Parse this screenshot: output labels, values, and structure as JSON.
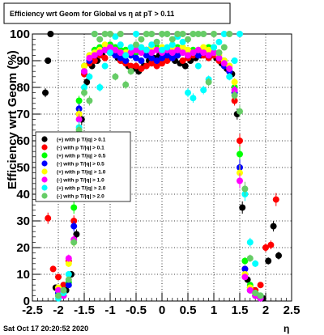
{
  "chart_data": {
    "type": "scatter",
    "title": "Efficiency wrt Geom for Global vs   η at pT > 0.11",
    "xlabel": "η",
    "ylabel": "Efficiency wrt Geom (%)",
    "xlim": [
      -2.5,
      2.5
    ],
    "ylim": [
      0,
      100
    ],
    "x_ticks": [
      -2.5,
      -2,
      -1.5,
      -1,
      -0.5,
      0,
      0.5,
      1,
      1.5,
      2,
      2.5
    ],
    "y_ticks": [
      0,
      10,
      20,
      30,
      40,
      50,
      60,
      70,
      80,
      90,
      100
    ],
    "grid": true,
    "legend_position": "left-middle",
    "timestamp": "Sat Oct 17 20:20:52 2020",
    "series": [
      {
        "name": "(+) with p T/|q| > 0.1",
        "color": "#000000",
        "x": [
          -2.25,
          -2.2,
          -2.15,
          -2.05,
          -1.95,
          -1.85,
          -1.75,
          -1.65,
          -1.55,
          -1.45,
          -1.35,
          -1.25,
          -1.15,
          -1.05,
          -0.95,
          -0.85,
          -0.75,
          -0.65,
          -0.55,
          -0.45,
          -0.35,
          -0.25,
          -0.15,
          -0.05,
          0.05,
          0.15,
          0.25,
          0.35,
          0.45,
          0.55,
          0.65,
          0.75,
          0.85,
          0.95,
          1.05,
          1.15,
          1.25,
          1.35,
          1.45,
          1.55,
          1.65,
          1.75,
          1.85,
          1.95,
          2.05,
          2.15,
          2.25
        ],
        "y": [
          78,
          90,
          100,
          5,
          3,
          4,
          10,
          25,
          68,
          82,
          88,
          90,
          92,
          94,
          93,
          91,
          90,
          88,
          87,
          86,
          88,
          90,
          91,
          92,
          92,
          91,
          90,
          89,
          88,
          90,
          91,
          92,
          93,
          92,
          91,
          89,
          87,
          85,
          70,
          35,
          8,
          4,
          2,
          1,
          15,
          28,
          17
        ]
      },
      {
        "name": "(-) with p T/|q| > 0.1",
        "color": "#ff0000",
        "x": [
          -2.2,
          -2.1,
          -2.0,
          -1.9,
          -1.8,
          -1.7,
          -1.6,
          -1.5,
          -1.4,
          -1.3,
          -1.2,
          -1.1,
          -1.0,
          -0.9,
          -0.8,
          -0.7,
          -0.6,
          -0.5,
          -0.4,
          -0.3,
          -0.2,
          -0.1,
          0.0,
          0.1,
          0.2,
          0.3,
          0.4,
          0.5,
          0.6,
          0.7,
          0.8,
          0.9,
          1.0,
          1.1,
          1.2,
          1.3,
          1.4,
          1.5,
          1.6,
          1.7,
          1.8,
          1.9,
          2.0,
          2.1,
          2.2
        ],
        "y": [
          31,
          12,
          9,
          6,
          15,
          30,
          70,
          85,
          89,
          90,
          92,
          91,
          93,
          92,
          90,
          89,
          88,
          88,
          87,
          88,
          89,
          88,
          89,
          90,
          91,
          92,
          90,
          91,
          92,
          93,
          92,
          91,
          92,
          90,
          88,
          86,
          75,
          60,
          12,
          5,
          4,
          6,
          20,
          21,
          38
        ]
      },
      {
        "name": "(+) with p T/|q| > 0.5",
        "color": "#00ff00",
        "x": [
          -2.0,
          -1.9,
          -1.8,
          -1.7,
          -1.6,
          -1.5,
          -1.4,
          -1.3,
          -1.2,
          -1.1,
          -1.0,
          -0.9,
          -0.8,
          -0.7,
          -0.6,
          -0.5,
          -0.4,
          -0.3,
          -0.2,
          -0.1,
          0.0,
          0.1,
          0.2,
          0.3,
          0.4,
          0.5,
          0.6,
          0.7,
          0.8,
          0.9,
          1.0,
          1.1,
          1.2,
          1.3,
          1.4,
          1.5,
          1.6,
          1.7,
          1.8,
          1.9
        ],
        "y": [
          2,
          4,
          7,
          35,
          75,
          88,
          92,
          94,
          95,
          95,
          96,
          95,
          94,
          94,
          93,
          93,
          94,
          94,
          95,
          95,
          94,
          93,
          94,
          95,
          95,
          94,
          94,
          93,
          94,
          95,
          95,
          93,
          90,
          88,
          80,
          55,
          15,
          6,
          3,
          1
        ]
      },
      {
        "name": "(-) with p T/|q| > 0.5",
        "color": "#0000ff",
        "x": [
          -2.0,
          -1.9,
          -1.8,
          -1.7,
          -1.6,
          -1.5,
          -1.4,
          -1.3,
          -1.2,
          -1.1,
          -1.0,
          -0.9,
          -0.8,
          -0.7,
          -0.6,
          -0.5,
          -0.4,
          -0.3,
          -0.2,
          -0.1,
          0.0,
          0.1,
          0.2,
          0.3,
          0.4,
          0.5,
          0.6,
          0.7,
          0.8,
          0.9,
          1.0,
          1.1,
          1.2,
          1.3,
          1.4,
          1.5,
          1.6,
          1.7,
          1.8,
          1.9
        ],
        "y": [
          3,
          2,
          6,
          28,
          72,
          86,
          90,
          92,
          93,
          94,
          93,
          92,
          91,
          90,
          92,
          91,
          90,
          92,
          91,
          90,
          91,
          92,
          91,
          92,
          93,
          92,
          93,
          92,
          93,
          92,
          93,
          91,
          88,
          86,
          78,
          50,
          12,
          4,
          2,
          1
        ]
      },
      {
        "name": "(+) with p T/|q| > 1.0",
        "color": "#ffff00",
        "x": [
          -2.0,
          -1.9,
          -1.8,
          -1.7,
          -1.6,
          -1.5,
          -1.4,
          -1.3,
          -1.2,
          -1.1,
          -1.0,
          -0.9,
          -0.8,
          -0.7,
          -0.6,
          -0.5,
          -0.4,
          -0.3,
          -0.2,
          -0.1,
          0.0,
          0.1,
          0.2,
          0.3,
          0.4,
          0.5,
          0.6,
          0.7,
          0.8,
          0.9,
          1.0,
          1.1,
          1.2,
          1.3,
          1.4,
          1.5,
          1.6,
          1.7,
          1.8,
          1.9
        ],
        "y": [
          5,
          3,
          14,
          22,
          70,
          88,
          92,
          93,
          94,
          96,
          95,
          94,
          93,
          93,
          94,
          94,
          95,
          94,
          95,
          94,
          95,
          94,
          95,
          94,
          95,
          94,
          93,
          94,
          95,
          94,
          93,
          92,
          90,
          88,
          82,
          48,
          10,
          5,
          3,
          2
        ]
      },
      {
        "name": "(-) with p T/|q| > 1.0",
        "color": "#ff00ff",
        "x": [
          -2.0,
          -1.9,
          -1.8,
          -1.7,
          -1.6,
          -1.5,
          -1.4,
          -1.3,
          -1.2,
          -1.1,
          -1.0,
          -0.9,
          -0.8,
          -0.7,
          -0.6,
          -0.5,
          -0.4,
          -0.3,
          -0.2,
          -0.1,
          0.0,
          0.1,
          0.2,
          0.3,
          0.4,
          0.5,
          0.6,
          0.7,
          0.8,
          0.9,
          1.0,
          1.1,
          1.2,
          1.3,
          1.4,
          1.5,
          1.6,
          1.7,
          1.8,
          1.9
        ],
        "y": [
          4,
          2,
          16,
          23,
          68,
          86,
          91,
          92,
          93,
          94,
          95,
          94,
          93,
          92,
          93,
          94,
          93,
          94,
          93,
          94,
          93,
          94,
          93,
          94,
          93,
          92,
          93,
          94,
          93,
          92,
          93,
          91,
          89,
          87,
          79,
          45,
          9,
          4,
          2,
          1
        ]
      },
      {
        "name": "(+) with p T/|q| > 2.0",
        "color": "#00ffff",
        "x": [
          -2.0,
          -1.9,
          -1.8,
          -1.7,
          -1.6,
          -1.5,
          -1.4,
          -1.3,
          -1.2,
          -1.1,
          -1.0,
          -0.9,
          -0.8,
          -0.7,
          -0.6,
          -0.5,
          -0.4,
          -0.3,
          -0.2,
          -0.1,
          0.0,
          0.1,
          0.2,
          0.3,
          0.4,
          0.5,
          0.6,
          0.7,
          0.8,
          0.9,
          1.0,
          1.1,
          1.2,
          1.3,
          1.4,
          1.5,
          1.6,
          1.7,
          1.8,
          1.9
        ],
        "y": [
          1,
          3,
          10,
          45,
          65,
          80,
          84,
          100,
          80,
          88,
          93,
          99,
          96,
          92,
          95,
          100,
          95,
          94,
          96,
          97,
          94,
          95,
          96,
          99,
          97,
          78,
          76,
          88,
          79,
          83,
          95,
          97,
          100,
          84,
          90,
          100,
          40,
          22,
          14,
          2
        ]
      },
      {
        "name": "(-) with p T/|q| > 2.0",
        "color": "#66cc66",
        "x": [
          -2.0,
          -1.9,
          -1.8,
          -1.7,
          -1.6,
          -1.5,
          -1.4,
          -1.3,
          -1.2,
          -1.1,
          -1.0,
          -0.9,
          -0.8,
          -0.7,
          -0.6,
          -0.5,
          -0.4,
          -0.3,
          -0.2,
          -0.1,
          0.0,
          0.1,
          0.2,
          0.3,
          0.4,
          0.5,
          0.6,
          0.7,
          0.8,
          0.9,
          1.0,
          1.1,
          1.2,
          1.3,
          1.4,
          1.5,
          1.6,
          1.7,
          1.8,
          1.9
        ],
        "y": [
          2,
          4,
          8,
          22,
          64,
          78,
          75,
          100,
          98,
          100,
          100,
          84,
          100,
          81,
          86,
          96,
          98,
          100,
          100,
          97,
          100,
          100,
          98,
          100,
          100,
          98,
          100,
          100,
          100,
          82,
          100,
          93,
          95,
          100,
          77,
          71,
          42,
          16,
          3,
          2
        ]
      }
    ]
  }
}
